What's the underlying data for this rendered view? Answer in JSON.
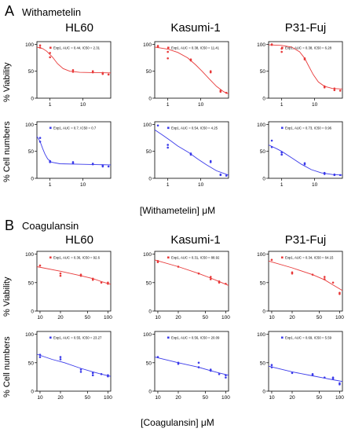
{
  "sections": [
    {
      "letter": "A",
      "compound": "Withametelin",
      "x_caption": "[Withametelin] μM",
      "column_titles": [
        "HL60",
        "Kasumi-1",
        "P31-Fuj"
      ],
      "row_labels": [
        "% Viability",
        "% Cell numbers"
      ]
    },
    {
      "letter": "B",
      "compound": "Coagulansin",
      "x_caption": "[Coagulansin] μM",
      "column_titles": [
        "HL60",
        "Kasumi-1",
        "P31-Fuj"
      ],
      "row_labels": [
        "% Viability",
        "% Cell numbers"
      ]
    }
  ],
  "colors": {
    "viability": "#e83a3a",
    "cell_numbers": "#3b3bea"
  },
  "chart_data": [
    {
      "type": "scatter",
      "section": "A",
      "title": "HL60",
      "ylabel": "% Viability",
      "xlabel": "[Withametelin] μM",
      "x_scale": "log",
      "xlim": [
        0.4,
        70
      ],
      "ylim": [
        0,
        105
      ],
      "x_ticks": [
        1,
        10
      ],
      "y_ticks": [
        0,
        50,
        100
      ],
      "legend": "Exp1, AUC = 0.44, IC50 = 2.31",
      "points": [
        [
          0.5,
          94
        ],
        [
          0.5,
          98
        ],
        [
          1,
          84
        ],
        [
          1,
          76
        ],
        [
          5,
          49
        ],
        [
          5,
          52
        ],
        [
          20,
          48
        ],
        [
          20,
          50
        ],
        [
          40,
          45
        ],
        [
          40,
          47
        ],
        [
          60,
          44
        ]
      ],
      "fit": [
        [
          0.4,
          95
        ],
        [
          0.6,
          92
        ],
        [
          0.8,
          87
        ],
        [
          1.2,
          76
        ],
        [
          1.7,
          64
        ],
        [
          2.5,
          55
        ],
        [
          4,
          50
        ],
        [
          8,
          48
        ],
        [
          20,
          47.5
        ],
        [
          70,
          47
        ]
      ]
    },
    {
      "type": "scatter",
      "section": "A",
      "title": "Kasumi-1",
      "ylabel": "% Viability",
      "xlabel": "[Withametelin] μM",
      "x_scale": "log",
      "xlim": [
        0.4,
        70
      ],
      "ylim": [
        0,
        105
      ],
      "x_ticks": [
        1,
        10
      ],
      "y_ticks": [
        0,
        50,
        100
      ],
      "legend": "Exp1, AUC = 0.38, IC50 = 11.41",
      "points": [
        [
          0.5,
          97
        ],
        [
          0.5,
          95
        ],
        [
          1,
          86
        ],
        [
          1,
          74
        ],
        [
          5,
          70
        ],
        [
          5,
          72
        ],
        [
          20,
          50
        ],
        [
          20,
          48
        ],
        [
          40,
          12
        ],
        [
          40,
          14
        ],
        [
          60,
          10
        ]
      ],
      "fit": [
        [
          0.4,
          95
        ],
        [
          1,
          91
        ],
        [
          2,
          85
        ],
        [
          4,
          75
        ],
        [
          7,
          62
        ],
        [
          11,
          50
        ],
        [
          18,
          36
        ],
        [
          30,
          22
        ],
        [
          50,
          12
        ],
        [
          70,
          8
        ]
      ]
    },
    {
      "type": "scatter",
      "section": "A",
      "title": "P31-Fuj",
      "ylabel": "% Viability",
      "xlabel": "[Withametelin] μM",
      "x_scale": "log",
      "xlim": [
        0.4,
        70
      ],
      "ylim": [
        0,
        105
      ],
      "x_ticks": [
        1,
        10
      ],
      "y_ticks": [
        0,
        50,
        100
      ],
      "legend": "Exp1, AUC = 0.38, IC50 = 6.28",
      "points": [
        [
          0.5,
          99
        ],
        [
          0.5,
          100
        ],
        [
          1,
          92
        ],
        [
          1,
          86
        ],
        [
          5,
          72
        ],
        [
          5,
          74
        ],
        [
          20,
          22
        ],
        [
          20,
          20
        ],
        [
          40,
          18
        ],
        [
          40,
          15
        ],
        [
          60,
          14
        ]
      ],
      "fit": [
        [
          0.4,
          99
        ],
        [
          1,
          98
        ],
        [
          2,
          95
        ],
        [
          3.5,
          86
        ],
        [
          5,
          74
        ],
        [
          6.3,
          62
        ],
        [
          9,
          44
        ],
        [
          13,
          30
        ],
        [
          20,
          22
        ],
        [
          35,
          18
        ],
        [
          70,
          17
        ]
      ]
    },
    {
      "type": "scatter",
      "section": "A",
      "title": "HL60",
      "ylabel": "% Cell numbers",
      "xlabel": "[Withametelin] μM",
      "x_scale": "log",
      "xlim": [
        0.4,
        70
      ],
      "ylim": [
        0,
        105
      ],
      "x_ticks": [
        1,
        10
      ],
      "y_ticks": [
        0,
        50,
        100
      ],
      "legend": "Exp1, AUC = 0.7, IC50 = 0.7",
      "points": [
        [
          0.5,
          75
        ],
        [
          0.5,
          68
        ],
        [
          1,
          32
        ],
        [
          1,
          30
        ],
        [
          5,
          28
        ],
        [
          5,
          30
        ],
        [
          20,
          26
        ],
        [
          20,
          27
        ],
        [
          40,
          24
        ],
        [
          40,
          22
        ],
        [
          60,
          22
        ]
      ],
      "fit": [
        [
          0.4,
          78
        ],
        [
          0.5,
          68
        ],
        [
          0.6,
          55
        ],
        [
          0.7,
          45
        ],
        [
          0.85,
          36
        ],
        [
          1.1,
          30
        ],
        [
          2,
          27
        ],
        [
          10,
          26
        ],
        [
          70,
          25
        ]
      ]
    },
    {
      "type": "scatter",
      "section": "A",
      "title": "Kasumi-1",
      "ylabel": "% Cell numbers",
      "xlabel": "[Withametelin] μM",
      "x_scale": "log",
      "xlim": [
        0.4,
        70
      ],
      "ylim": [
        0,
        105
      ],
      "x_ticks": [
        1,
        10
      ],
      "y_ticks": [
        0,
        50,
        100
      ],
      "legend": "Exp1, AUC = 0.54, IC50 = 4.25",
      "points": [
        [
          0.5,
          98
        ],
        [
          1,
          62
        ],
        [
          1,
          57
        ],
        [
          5,
          44
        ],
        [
          5,
          46
        ],
        [
          20,
          30
        ],
        [
          20,
          32
        ],
        [
          40,
          6
        ],
        [
          40,
          7
        ],
        [
          60,
          5
        ]
      ],
      "fit": [
        [
          0.4,
          90
        ],
        [
          0.7,
          80
        ],
        [
          1.2,
          70
        ],
        [
          2,
          60
        ],
        [
          4.3,
          48
        ],
        [
          8,
          36
        ],
        [
          15,
          25
        ],
        [
          30,
          14
        ],
        [
          70,
          6
        ]
      ]
    },
    {
      "type": "scatter",
      "section": "A",
      "title": "P31-Fuj",
      "ylabel": "% Cell numbers",
      "xlabel": "[Withametelin] μM",
      "x_scale": "log",
      "xlim": [
        0.4,
        70
      ],
      "ylim": [
        0,
        105
      ],
      "x_ticks": [
        1,
        10
      ],
      "y_ticks": [
        0,
        50,
        100
      ],
      "legend": "Exp1, AUC = 0.73, IC50 = 0.96",
      "points": [
        [
          0.5,
          70
        ],
        [
          0.5,
          58
        ],
        [
          1,
          48
        ],
        [
          1,
          44
        ],
        [
          5,
          28
        ],
        [
          5,
          26
        ],
        [
          20,
          10
        ],
        [
          20,
          8
        ],
        [
          40,
          7
        ],
        [
          40,
          6
        ],
        [
          60,
          6
        ]
      ],
      "fit": [
        [
          0.4,
          62
        ],
        [
          0.7,
          55
        ],
        [
          1,
          50
        ],
        [
          2,
          38
        ],
        [
          4,
          26
        ],
        [
          8,
          16
        ],
        [
          16,
          10
        ],
        [
          35,
          7
        ],
        [
          70,
          6
        ]
      ]
    },
    {
      "type": "scatter",
      "section": "B",
      "title": "HL60",
      "ylabel": "% Viability",
      "xlabel": "[Coagulansin] μM",
      "x_scale": "log",
      "xlim": [
        9,
        110
      ],
      "ylim": [
        0,
        105
      ],
      "x_ticks": [
        10,
        20,
        50,
        100
      ],
      "y_ticks": [
        0,
        50,
        100
      ],
      "legend": "Exp1, AUC = 0.36, IC50 = 92.6",
      "points": [
        [
          10,
          80
        ],
        [
          20,
          66
        ],
        [
          20,
          62
        ],
        [
          40,
          62
        ],
        [
          40,
          64
        ],
        [
          60,
          55
        ],
        [
          60,
          57
        ],
        [
          80,
          50
        ],
        [
          100,
          48
        ],
        [
          100,
          50
        ]
      ],
      "fit": [
        [
          9,
          78
        ],
        [
          20,
          70
        ],
        [
          40,
          62
        ],
        [
          60,
          57
        ],
        [
          80,
          52
        ],
        [
          110,
          47
        ]
      ]
    },
    {
      "type": "scatter",
      "section": "B",
      "title": "Kasumi-1",
      "ylabel": "% Viability",
      "xlabel": "[Coagulansin] μM",
      "x_scale": "log",
      "xlim": [
        9,
        110
      ],
      "ylim": [
        0,
        105
      ],
      "x_ticks": [
        10,
        20,
        50,
        100
      ],
      "y_ticks": [
        0,
        50,
        100
      ],
      "legend": "Exp1, AUC = 0.31, IC50 = 88.92",
      "points": [
        [
          10,
          88
        ],
        [
          10,
          86
        ],
        [
          20,
          78
        ],
        [
          40,
          66
        ],
        [
          60,
          60
        ],
        [
          60,
          56
        ],
        [
          80,
          52
        ],
        [
          80,
          50
        ],
        [
          100,
          48
        ]
      ],
      "fit": [
        [
          9,
          90
        ],
        [
          20,
          78
        ],
        [
          40,
          66
        ],
        [
          60,
          58
        ],
        [
          80,
          52
        ],
        [
          110,
          45
        ]
      ]
    },
    {
      "type": "scatter",
      "section": "B",
      "title": "P31-Fuj",
      "ylabel": "% Viability",
      "xlabel": "[Coagulansin] μM",
      "x_scale": "log",
      "xlim": [
        9,
        110
      ],
      "ylim": [
        0,
        105
      ],
      "x_ticks": [
        10,
        20,
        50,
        100
      ],
      "y_ticks": [
        0,
        50,
        100
      ],
      "legend": "Exp1, AUC = 0.34, IC50 = 64.15",
      "points": [
        [
          10,
          90
        ],
        [
          20,
          68
        ],
        [
          20,
          66
        ],
        [
          40,
          64
        ],
        [
          60,
          60
        ],
        [
          60,
          56
        ],
        [
          80,
          50
        ],
        [
          100,
          32
        ],
        [
          100,
          30
        ]
      ],
      "fit": [
        [
          9,
          88
        ],
        [
          20,
          76
        ],
        [
          40,
          64
        ],
        [
          60,
          55
        ],
        [
          80,
          46
        ],
        [
          110,
          36
        ]
      ]
    },
    {
      "type": "scatter",
      "section": "B",
      "title": "HL60",
      "ylabel": "% Cell numbers",
      "xlabel": "[Coagulansin] μM",
      "x_scale": "log",
      "xlim": [
        9,
        110
      ],
      "ylim": [
        0,
        105
      ],
      "x_ticks": [
        10,
        20,
        50,
        100
      ],
      "y_ticks": [
        0,
        50,
        100
      ],
      "legend": "Exp1, AUC = 0.55, IC50 = 23.27",
      "points": [
        [
          10,
          64
        ],
        [
          10,
          60
        ],
        [
          20,
          60
        ],
        [
          20,
          56
        ],
        [
          40,
          38
        ],
        [
          40,
          34
        ],
        [
          60,
          28
        ],
        [
          60,
          32
        ],
        [
          80,
          30
        ],
        [
          100,
          26
        ],
        [
          100,
          28
        ]
      ],
      "fit": [
        [
          9,
          65
        ],
        [
          15,
          56
        ],
        [
          23,
          50
        ],
        [
          40,
          40
        ],
        [
          60,
          34
        ],
        [
          80,
          30
        ],
        [
          110,
          26
        ]
      ]
    },
    {
      "type": "scatter",
      "section": "B",
      "title": "Kasumi-1",
      "ylabel": "% Cell numbers",
      "xlabel": "[Coagulansin] μM",
      "x_scale": "log",
      "xlim": [
        9,
        110
      ],
      "ylim": [
        0,
        105
      ],
      "x_ticks": [
        10,
        20,
        50,
        100
      ],
      "y_ticks": [
        0,
        50,
        100
      ],
      "legend": "Exp1, AUC = 0.56, IC50 = 20.09",
      "points": [
        [
          10,
          60
        ],
        [
          20,
          48
        ],
        [
          20,
          50
        ],
        [
          40,
          50
        ],
        [
          40,
          42
        ],
        [
          60,
          38
        ],
        [
          60,
          36
        ],
        [
          80,
          30
        ],
        [
          100,
          28
        ],
        [
          100,
          24
        ]
      ],
      "fit": [
        [
          9,
          60
        ],
        [
          20,
          50
        ],
        [
          40,
          42
        ],
        [
          60,
          36
        ],
        [
          80,
          32
        ],
        [
          110,
          28
        ]
      ]
    },
    {
      "type": "scatter",
      "section": "B",
      "title": "P31-Fuj",
      "ylabel": "% Cell numbers",
      "xlabel": "[Coagulansin] μM",
      "x_scale": "log",
      "xlim": [
        9,
        110
      ],
      "ylim": [
        0,
        105
      ],
      "x_ticks": [
        10,
        20,
        50,
        100
      ],
      "y_ticks": [
        0,
        50,
        100
      ],
      "legend": "Exp1, AUC = 0.69, IC50 = 5.59",
      "points": [
        [
          10,
          46
        ],
        [
          10,
          42
        ],
        [
          20,
          32
        ],
        [
          40,
          30
        ],
        [
          40,
          28
        ],
        [
          60,
          24
        ],
        [
          80,
          24
        ],
        [
          80,
          22
        ],
        [
          100,
          14
        ],
        [
          100,
          12
        ]
      ],
      "fit": [
        [
          9,
          44
        ],
        [
          20,
          34
        ],
        [
          40,
          27
        ],
        [
          60,
          23
        ],
        [
          80,
          20
        ],
        [
          110,
          17
        ]
      ]
    }
  ]
}
